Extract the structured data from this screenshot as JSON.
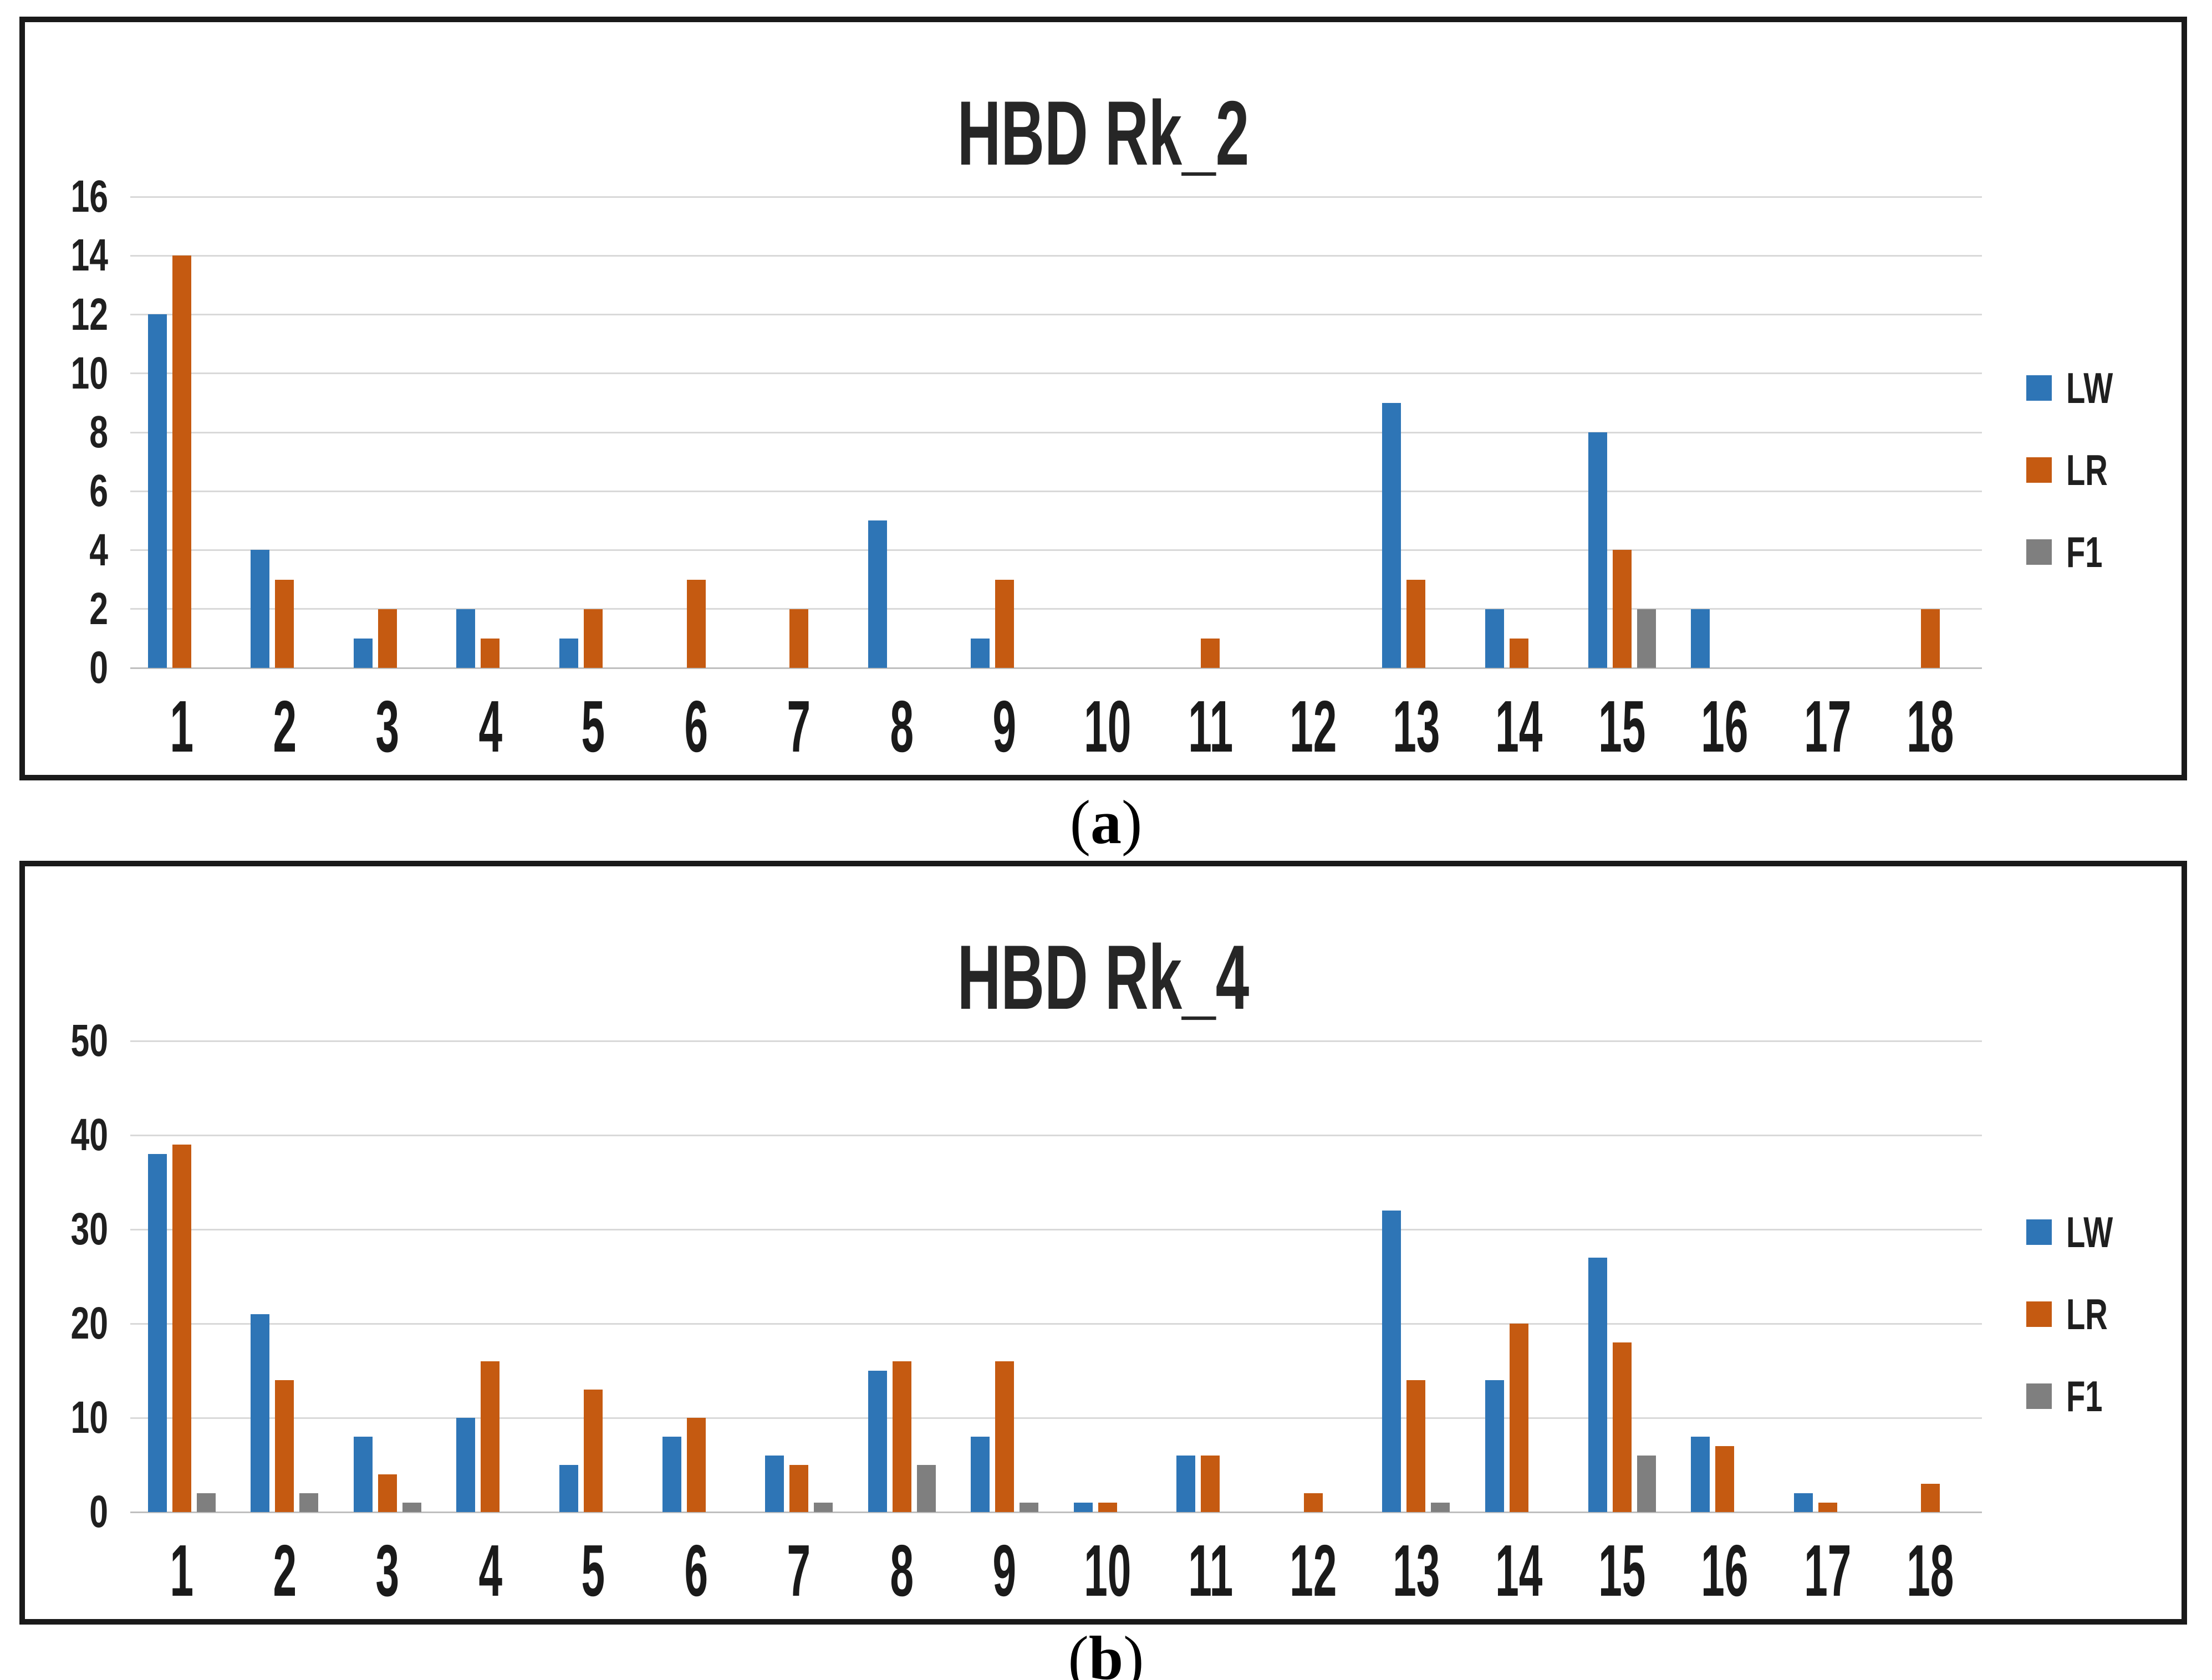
{
  "figure_captions": [
    {
      "open": "(",
      "letter": "a",
      "close": ")"
    },
    {
      "open": "(",
      "letter": "b",
      "close": ")"
    }
  ],
  "colors": {
    "lw_blue": "#2E75B6",
    "lr_orange": "#C55A11",
    "f1_gray": "#7F7F7F",
    "gridline": "#D9D9D9",
    "baseline": "#BFBFBF",
    "text": "#262626",
    "panel_border": "#1A1A1A"
  },
  "chart_data": [
    {
      "type": "bar",
      "title": "HBD Rk_2",
      "panel": "a",
      "xlabel": "",
      "ylabel": "",
      "ylim": [
        0,
        16
      ],
      "ytick_step": 2,
      "grid": true,
      "legend_position": "right",
      "categories": [
        "1",
        "2",
        "3",
        "4",
        "5",
        "6",
        "7",
        "8",
        "9",
        "10",
        "11",
        "12",
        "13",
        "14",
        "15",
        "16",
        "17",
        "18"
      ],
      "series": [
        {
          "name": "LW",
          "color": "#2E75B6",
          "values": [
            12,
            4,
            1,
            2,
            1,
            0,
            0,
            5,
            1,
            0,
            0,
            0,
            9,
            2,
            8,
            2,
            0,
            0
          ]
        },
        {
          "name": "LR",
          "color": "#C55A11",
          "values": [
            14,
            3,
            2,
            1,
            2,
            3,
            2,
            0,
            3,
            0,
            1,
            0,
            3,
            1,
            4,
            0,
            0,
            2
          ]
        },
        {
          "name": "F1",
          "color": "#7F7F7F",
          "values": [
            0,
            0,
            0,
            0,
            0,
            0,
            0,
            0,
            0,
            0,
            0,
            0,
            0,
            0,
            2,
            0,
            0,
            0
          ]
        }
      ]
    },
    {
      "type": "bar",
      "title": "HBD Rk_4",
      "panel": "b",
      "xlabel": "",
      "ylabel": "",
      "ylim": [
        0,
        50
      ],
      "ytick_step": 10,
      "grid": true,
      "legend_position": "right",
      "categories": [
        "1",
        "2",
        "3",
        "4",
        "5",
        "6",
        "7",
        "8",
        "9",
        "10",
        "11",
        "12",
        "13",
        "14",
        "15",
        "16",
        "17",
        "18"
      ],
      "series": [
        {
          "name": "LW",
          "color": "#2E75B6",
          "values": [
            38,
            21,
            8,
            10,
            5,
            8,
            6,
            15,
            8,
            1,
            6,
            0,
            32,
            14,
            27,
            8,
            2,
            0
          ]
        },
        {
          "name": "LR",
          "color": "#C55A11",
          "values": [
            39,
            14,
            4,
            16,
            13,
            10,
            5,
            16,
            16,
            1,
            6,
            2,
            14,
            20,
            18,
            7,
            1,
            3
          ]
        },
        {
          "name": "F1",
          "color": "#7F7F7F",
          "values": [
            2,
            2,
            1,
            0,
            0,
            0,
            1,
            5,
            1,
            0,
            0,
            0,
            1,
            0,
            6,
            0,
            0,
            0
          ]
        }
      ]
    }
  ]
}
